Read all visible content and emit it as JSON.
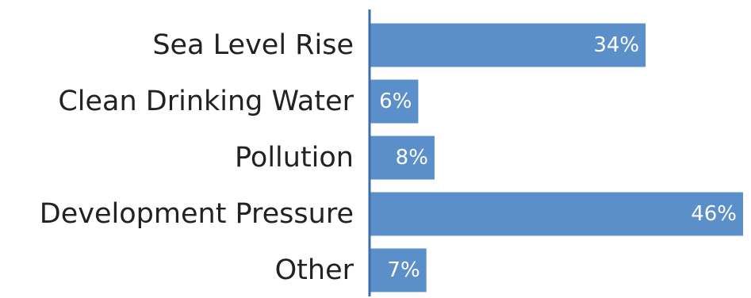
{
  "chart_data": {
    "type": "bar",
    "orientation": "horizontal",
    "categories": [
      "Sea Level Rise",
      "Clean Drinking Water",
      "Pollution",
      "Development Pressure",
      "Other"
    ],
    "values": [
      34,
      6,
      8,
      46,
      7
    ],
    "value_labels": [
      "34%",
      "6%",
      "8%",
      "46%",
      "7%"
    ],
    "xlim": [
      0,
      46
    ],
    "grid": false,
    "bar_color": "#5b8fc9",
    "axis_color": "#3d6ea8",
    "label_inside_color": "#ffffff",
    "label_outside_color": "#333333"
  }
}
